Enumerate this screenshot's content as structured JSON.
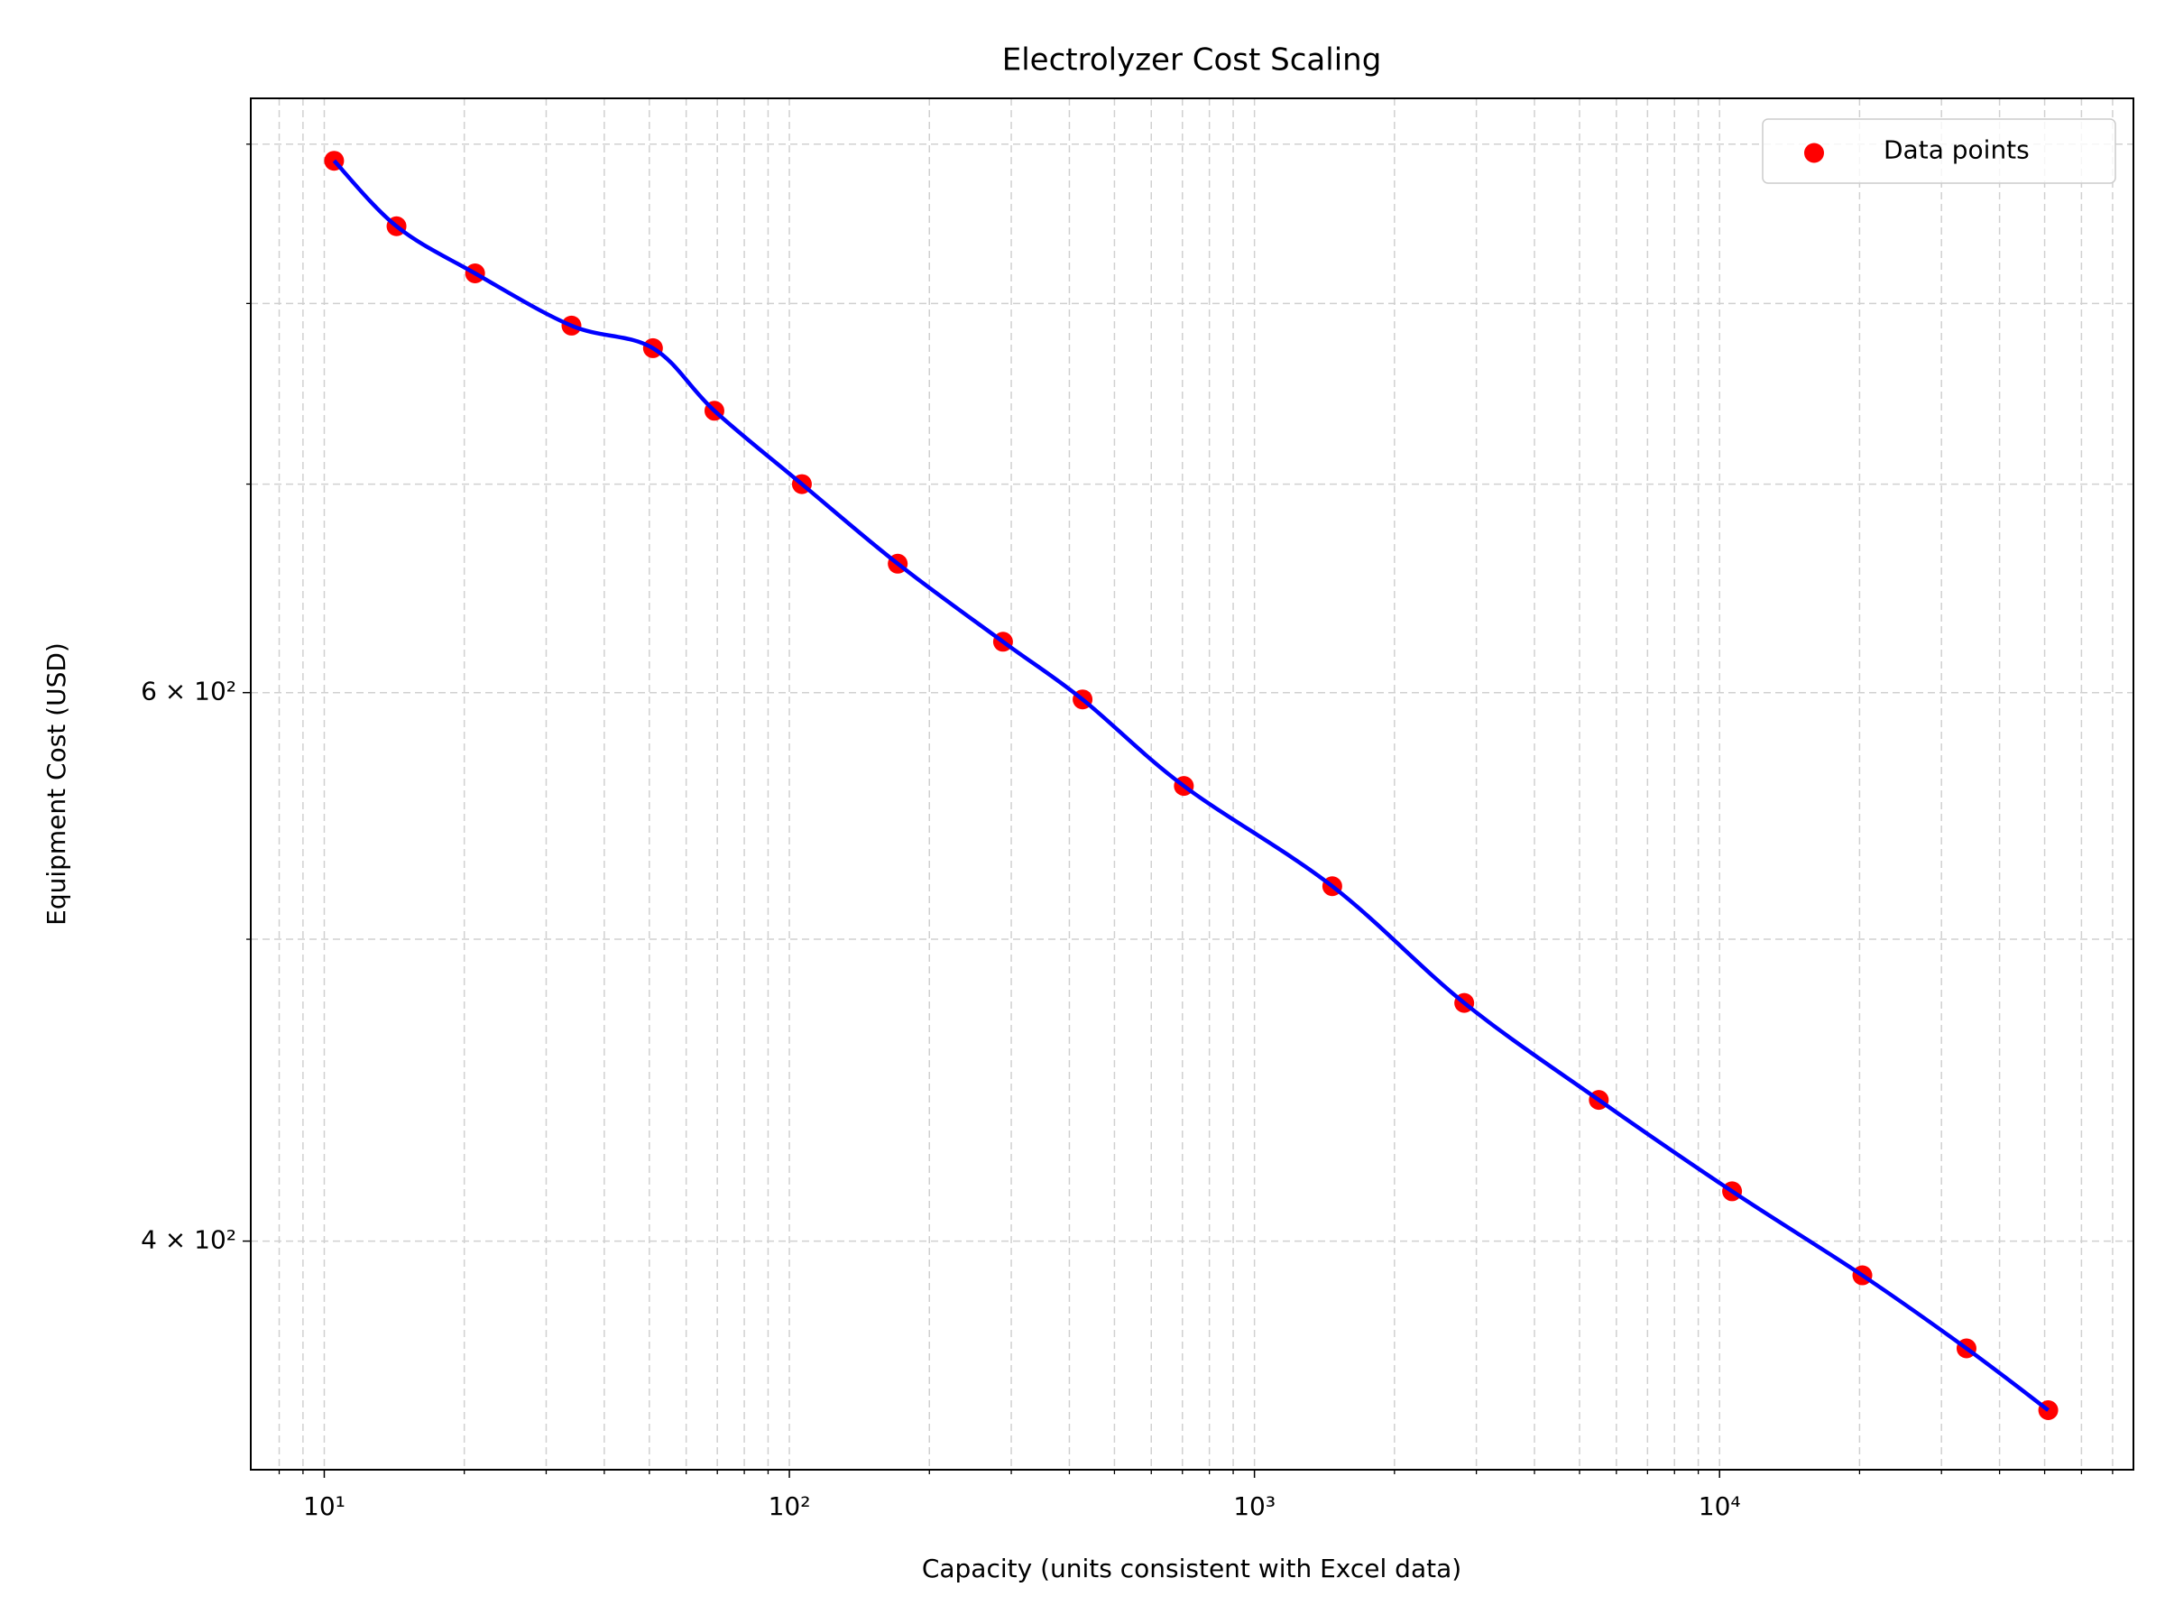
{
  "chart_data": {
    "type": "scatter",
    "title": "Electrolyzer Cost Scaling",
    "x_label": "Capacity (units consistent with Excel data)",
    "y_label": "Equipment Cost (USD)",
    "x": [
      10.5,
      14.3,
      21.1,
      34.0,
      50.9,
      69.0,
      106.4,
      171,
      288,
      427,
      705,
      1470,
      2825,
      5500,
      10640,
      20280,
      33960,
      50900
    ],
    "series": [
      {
        "name": "Data points",
        "color": "#ff0000",
        "values": [
          889,
          847,
          818,
          787,
          774,
          739,
          700,
          660,
          623,
          597,
          560,
          520,
          477,
          444,
          415,
          390,
          369.5,
          353
        ]
      }
    ],
    "fit_line_color": "#0000ff",
    "xscale": "log",
    "yscale": "log",
    "xlim": [
      6.95,
      77600
    ],
    "ylim": [
      337.8,
      931
    ],
    "xticks": [
      {
        "value": 10,
        "label": "10¹"
      },
      {
        "value": 100,
        "label": "10²"
      },
      {
        "value": 1000,
        "label": "10³"
      },
      {
        "value": 10000,
        "label": "10⁴"
      }
    ],
    "x_minor_ticks": [
      8,
      9,
      20,
      30,
      40,
      50,
      60,
      70,
      80,
      90,
      200,
      300,
      400,
      500,
      600,
      700,
      800,
      900,
      2000,
      3000,
      4000,
      5000,
      6000,
      7000,
      8000,
      9000,
      20000,
      30000,
      40000,
      50000,
      60000,
      70000
    ],
    "yticks": [
      {
        "value": 400,
        "label": "4 × 10²"
      },
      {
        "value": 600,
        "label": "6 × 10²"
      }
    ],
    "y_minor_ticks": [
      500,
      700,
      800,
      900
    ],
    "grid": true,
    "legend": "upper right"
  }
}
